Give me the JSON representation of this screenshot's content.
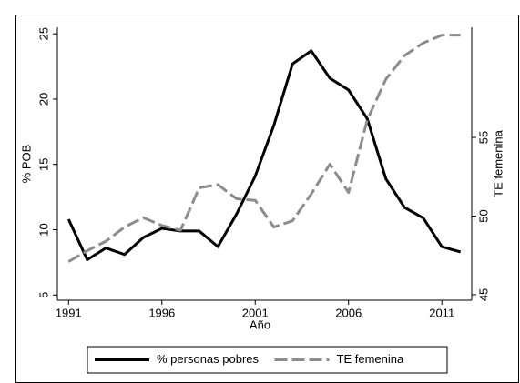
{
  "chart_data": {
    "type": "line",
    "xlabel": "Año",
    "ylabel": "% POB",
    "y2label": "TE femenina",
    "x": [
      1991,
      1992,
      1993,
      1994,
      1995,
      1996,
      1997,
      1998,
      1999,
      2000,
      2001,
      2002,
      2003,
      2004,
      2005,
      2006,
      2007,
      2008,
      2009,
      2010,
      2011,
      2012
    ],
    "series": [
      {
        "name": "% personas pobres",
        "color": "#000000",
        "dash": "solid",
        "axis": "y",
        "values": [
          10.8,
          7.7,
          8.6,
          8.1,
          9.4,
          10.1,
          9.9,
          9.9,
          8.7,
          11.2,
          14.1,
          18.0,
          22.7,
          23.7,
          21.6,
          20.7,
          18.5,
          13.9,
          11.7,
          10.9,
          8.7,
          8.3
        ]
      },
      {
        "name": "TE femenina",
        "color": "#8c8c8c",
        "dash": "dashed",
        "axis": "y2",
        "values": [
          47.1,
          47.8,
          48.4,
          49.3,
          49.9,
          49.4,
          49.1,
          51.8,
          52.0,
          51.1,
          51.0,
          49.3,
          49.7,
          51.4,
          53.3,
          51.5,
          56.1,
          58.7,
          60.2,
          61.0,
          61.5,
          61.5
        ]
      }
    ],
    "xlim": [
      1990.4,
      2012.6
    ],
    "xticks": [
      1991,
      1996,
      2001,
      2006,
      2011
    ],
    "ylim": [
      4.6,
      25.5
    ],
    "yticks": [
      5,
      10,
      15,
      20,
      25
    ],
    "y2lim": [
      44.65,
      62.0
    ],
    "y2ticks": [
      45,
      50,
      55
    ],
    "legend": "bottom"
  }
}
